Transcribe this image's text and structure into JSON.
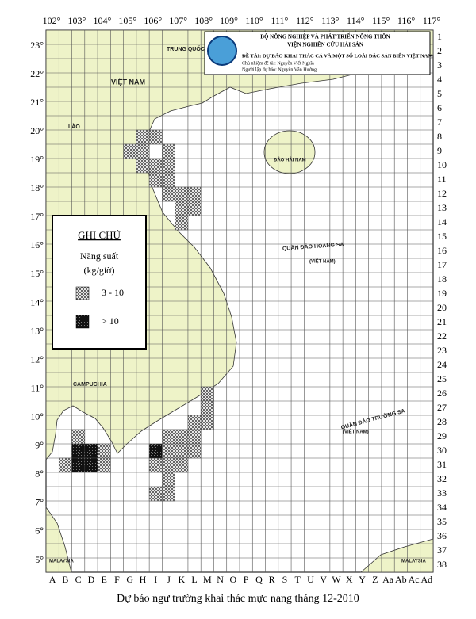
{
  "header": {
    "ministry": "BỘ NÔNG NGHIỆP VÀ PHÁT TRIỂN NÔNG THÔN",
    "institute": "VIỆN NGHIÊN CỨU HẢI SẢN",
    "project": "ĐỀ TÀI: DỰ BÁO KHAI THÁC CÁ VÀ MỘT SỐ LOÀI ĐẶC SẢN BIỂN VIỆT NAM",
    "leader": "Chủ nhiệm đề tài: Nguyễn Viết Nghĩa",
    "forecaster": "Người lập dự báo: Nguyễn Văn Hướng"
  },
  "longitudes": [
    "102°",
    "103°",
    "104°",
    "105°",
    "106°",
    "107°",
    "108°",
    "109°",
    "110°",
    "111°",
    "112°",
    "113°",
    "114°",
    "115°",
    "116°",
    "117°"
  ],
  "latitudes": [
    "23°",
    "22°",
    "21°",
    "20°",
    "19°",
    "18°",
    "17°",
    "16°",
    "15°",
    "14°",
    "13°",
    "12°",
    "11°",
    "10°",
    "9°",
    "8°",
    "7°",
    "6°",
    "5°"
  ],
  "columns": [
    "A",
    "B",
    "C",
    "D",
    "E",
    "F",
    "G",
    "H",
    "I",
    "J",
    "K",
    "L",
    "M",
    "N",
    "O",
    "P",
    "Q",
    "R",
    "S",
    "T",
    "U",
    "V",
    "W",
    "X",
    "Y",
    "Z",
    "Aa",
    "Ab",
    "Ac",
    "Ad"
  ],
  "rows": [
    1,
    2,
    3,
    4,
    5,
    6,
    7,
    8,
    9,
    10,
    11,
    12,
    13,
    14,
    15,
    16,
    17,
    18,
    19,
    20,
    21,
    22,
    23,
    24,
    25,
    26,
    27,
    28,
    29,
    30,
    31,
    32,
    33,
    34,
    35,
    36,
    37,
    38
  ],
  "places": {
    "china": "TRUNG QUỐC",
    "vietnam": "VIỆT NAM",
    "laos": "LÀO",
    "cambodia": "CAMPUCHIA",
    "hainan": "ĐẢO HẢI NAM",
    "paracel": "QUẦN ĐẢO HOÀNG SA",
    "spratly": "QUẦN ĐẢO TRƯỜNG SA",
    "spratly_vn": "(VIỆT NAM)",
    "paracel_vn": "(VIỆT NAM)",
    "malaysia_w": "MALAYSIA",
    "malaysia_e": "MALAYSIA"
  },
  "legend": {
    "title": "GHI CHÚ",
    "measure": "Năng suất",
    "unit": "(kg/giờ)",
    "items": [
      {
        "label": "3 - 10",
        "cells": [
          [
            "H",
            8
          ],
          [
            "I",
            8
          ],
          [
            "G",
            9
          ],
          [
            "H",
            9
          ],
          [
            "J",
            9
          ],
          [
            "H",
            10
          ],
          [
            "I",
            10
          ],
          [
            "J",
            10
          ],
          [
            "I",
            11
          ],
          [
            "J",
            11
          ],
          [
            "J",
            12
          ],
          [
            "K",
            12
          ],
          [
            "L",
            12
          ],
          [
            "K",
            13
          ],
          [
            "L",
            13
          ],
          [
            "K",
            14
          ],
          [
            "M",
            26
          ],
          [
            "M",
            27
          ],
          [
            "L",
            28
          ],
          [
            "M",
            28
          ],
          [
            "C",
            29
          ],
          [
            "J",
            29
          ],
          [
            "K",
            29
          ],
          [
            "L",
            29
          ],
          [
            "E",
            30
          ],
          [
            "J",
            30
          ],
          [
            "K",
            30
          ],
          [
            "L",
            30
          ],
          [
            "B",
            31
          ],
          [
            "E",
            31
          ],
          [
            "I",
            31
          ],
          [
            "J",
            31
          ],
          [
            "K",
            31
          ],
          [
            "J",
            32
          ],
          [
            "I",
            33
          ],
          [
            "J",
            33
          ]
        ]
      },
      {
        "label": "> 10",
        "cells": [
          [
            "C",
            30
          ],
          [
            "D",
            30
          ],
          [
            "I",
            30
          ],
          [
            "C",
            31
          ],
          [
            "D",
            31
          ]
        ]
      }
    ]
  },
  "caption": "Dự báo ngư trường khai thác mực nang tháng 12-2010"
}
